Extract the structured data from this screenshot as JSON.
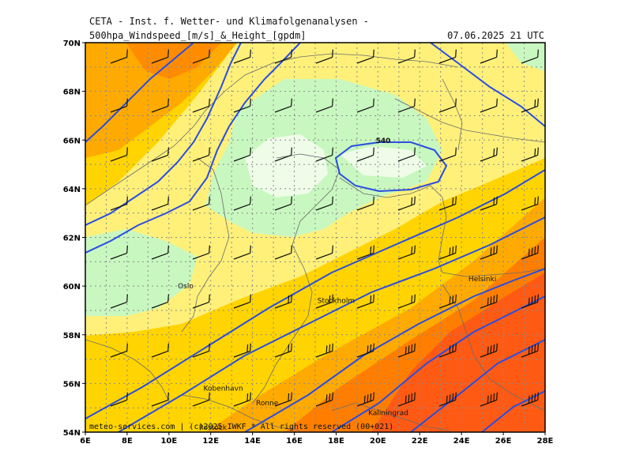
{
  "header": {
    "model": "CETA - Inst. f. Wetter- und Klimafolgenanalysen -",
    "field": "500hpa_Windspeed_[m/s]_&_Height_[gpdm]",
    "valid": "07.06.2025 21 UTC"
  },
  "map": {
    "lon_min": 6,
    "lon_max": 28,
    "lat_min": 54,
    "lat_max": 70,
    "lon_ticks": [
      "6E",
      "8E",
      "10E",
      "12E",
      "14E",
      "16E",
      "18E",
      "20E",
      "22E",
      "24E",
      "26E",
      "28E"
    ],
    "lat_ticks": [
      "54N",
      "56N",
      "58N",
      "60N",
      "62N",
      "64N",
      "66N",
      "68N",
      "70N"
    ],
    "grid": true,
    "contour_label": "540",
    "contour_color": "#2a4de0"
  },
  "cities": [
    {
      "name": "Oslo",
      "lon": 10.8,
      "lat": 59.9
    },
    {
      "name": "Stockholm",
      "lon": 18.0,
      "lat": 59.3
    },
    {
      "name": "Helsinki",
      "lon": 25.0,
      "lat": 60.2
    },
    {
      "name": "Kobenhavn",
      "lon": 12.6,
      "lat": 55.7
    },
    {
      "name": "Ronne",
      "lon": 14.7,
      "lat": 55.1
    },
    {
      "name": "Kaliningrad",
      "lon": 20.5,
      "lat": 54.7
    },
    {
      "name": "Rostock",
      "lon": 12.1,
      "lat": 54.1
    }
  ],
  "colors": {
    "very_low": "#eefce8",
    "low": "#c8f8c0",
    "mid_low": "#fff07a",
    "mid": "#ffd400",
    "mid_high": "#ffaa00",
    "high": "#ff7e00",
    "very_high": "#ff5a14",
    "coast": "#6b6b6b",
    "barb": "#111111"
  },
  "footer": {
    "copyright": "meteo-services.com | (c)2025 IWKF * All rights reserved (00+021)"
  }
}
